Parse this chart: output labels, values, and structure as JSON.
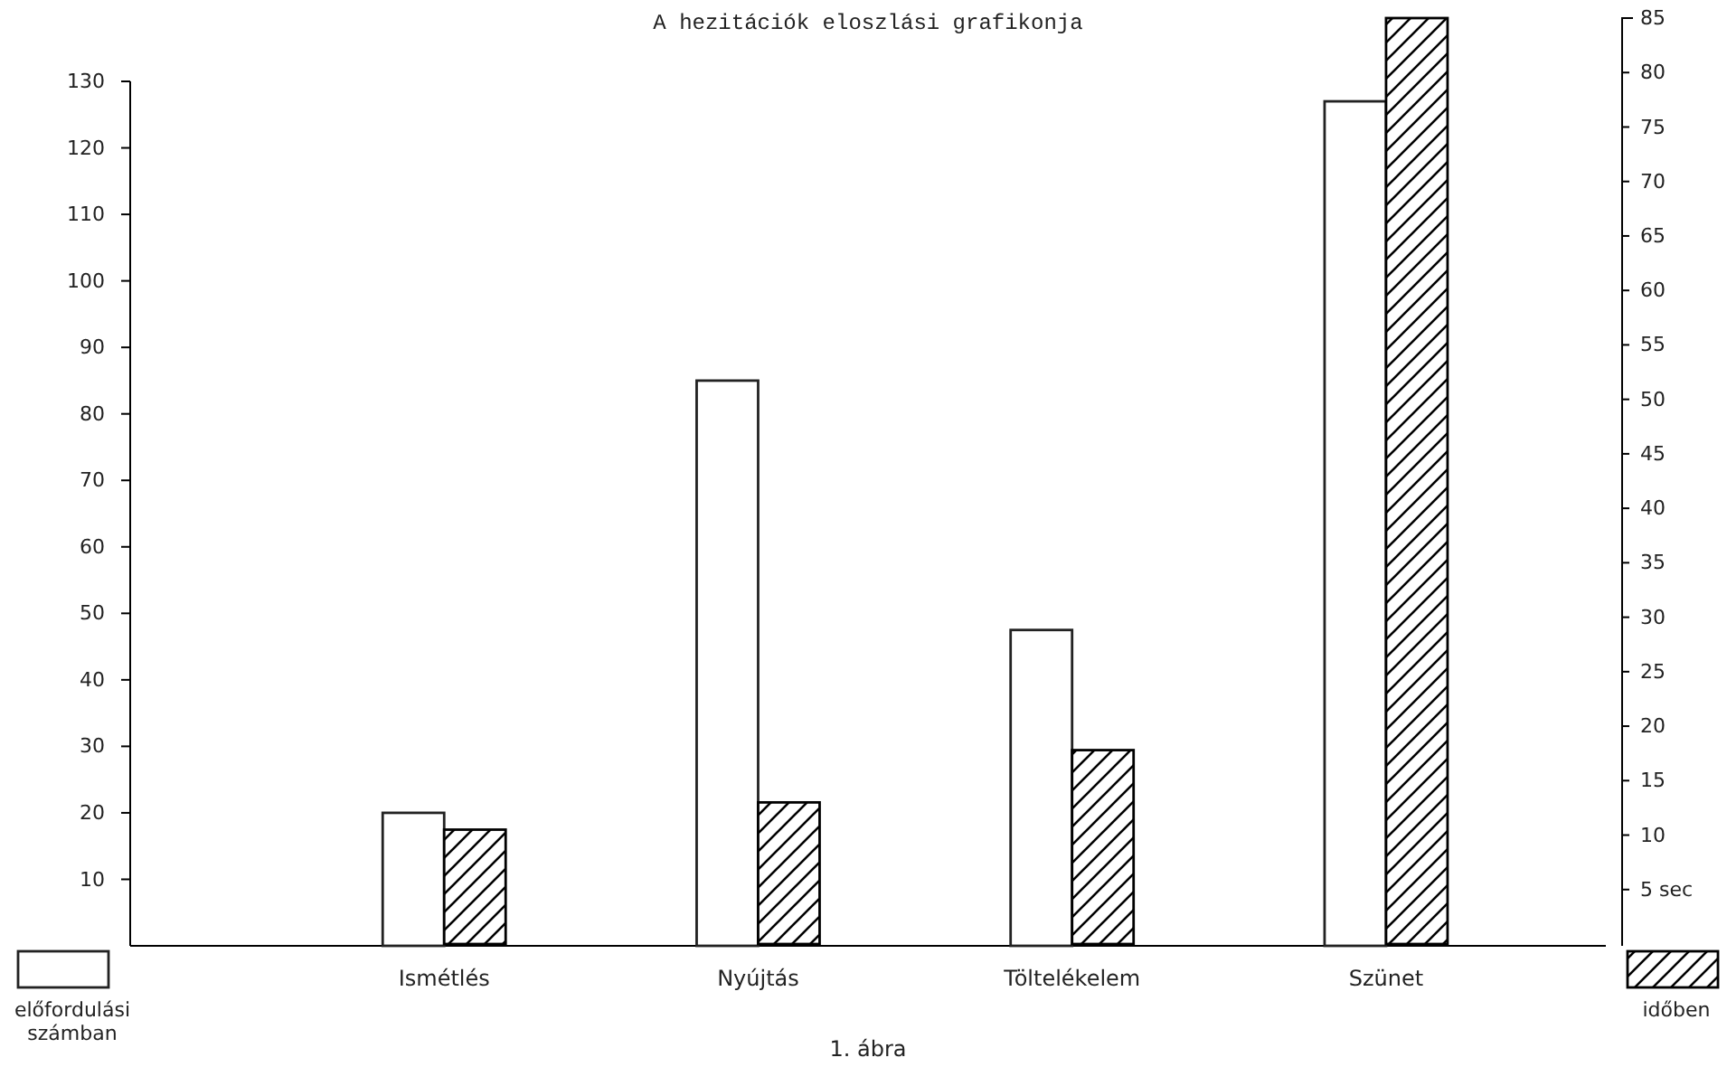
{
  "chart_data": {
    "type": "bar",
    "title": "A hezitációk eloszlási grafikonja",
    "categories": [
      "Ismétlés",
      "Nyújtás",
      "Töltelékelem",
      "Szünet"
    ],
    "series": [
      {
        "name": "előfordulási számban",
        "color": "#ffffff",
        "values": [
          20,
          85,
          47.5,
          127
        ]
      },
      {
        "name": "időben",
        "color": "#000000",
        "values": [
          10.5,
          13,
          17.8,
          85
        ],
        "axis": "y2"
      }
    ],
    "ylim": [
      0,
      130
    ],
    "yticks": [
      10,
      20,
      30,
      40,
      50,
      60,
      70,
      80,
      90,
      100,
      110,
      120,
      130
    ],
    "y2lim": [
      0,
      85
    ],
    "y2ticks": [
      {
        "value": 5,
        "label": "5 sec"
      },
      10,
      15,
      20,
      25,
      30,
      35,
      40,
      45,
      50,
      55,
      60,
      65,
      70,
      75,
      80,
      85
    ],
    "legend": "bottom",
    "grid": false,
    "annotations": [
      "1. ábra"
    ]
  }
}
